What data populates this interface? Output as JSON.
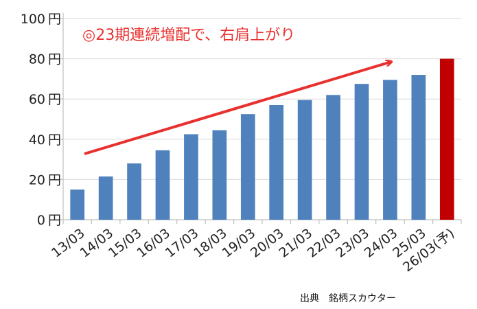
{
  "chart_data": {
    "type": "bar",
    "categories": [
      "13/03",
      "14/03",
      "15/03",
      "16/03",
      "17/03",
      "18/03",
      "19/03",
      "20/03",
      "21/03",
      "22/03",
      "23/03",
      "24/03",
      "25/03",
      "26/03(予)"
    ],
    "values": [
      15,
      21.5,
      28,
      34.5,
      42.5,
      44.5,
      52.5,
      57,
      59.5,
      62,
      67.5,
      69.5,
      72,
      80
    ],
    "ylim": [
      0,
      100
    ],
    "yticks": [
      0,
      20,
      40,
      60,
      80,
      100
    ],
    "y_unit": "円",
    "title": "",
    "xlabel": "",
    "ylabel": "",
    "grid": true,
    "bar_color": "#4f81bd",
    "forecast_color": "#c00000",
    "forecast_index": 13,
    "annotation": {
      "text": "◎23期連続増配で、右肩上がり",
      "color": "#e8312f"
    }
  },
  "source": "出典　銘柄スカウター"
}
